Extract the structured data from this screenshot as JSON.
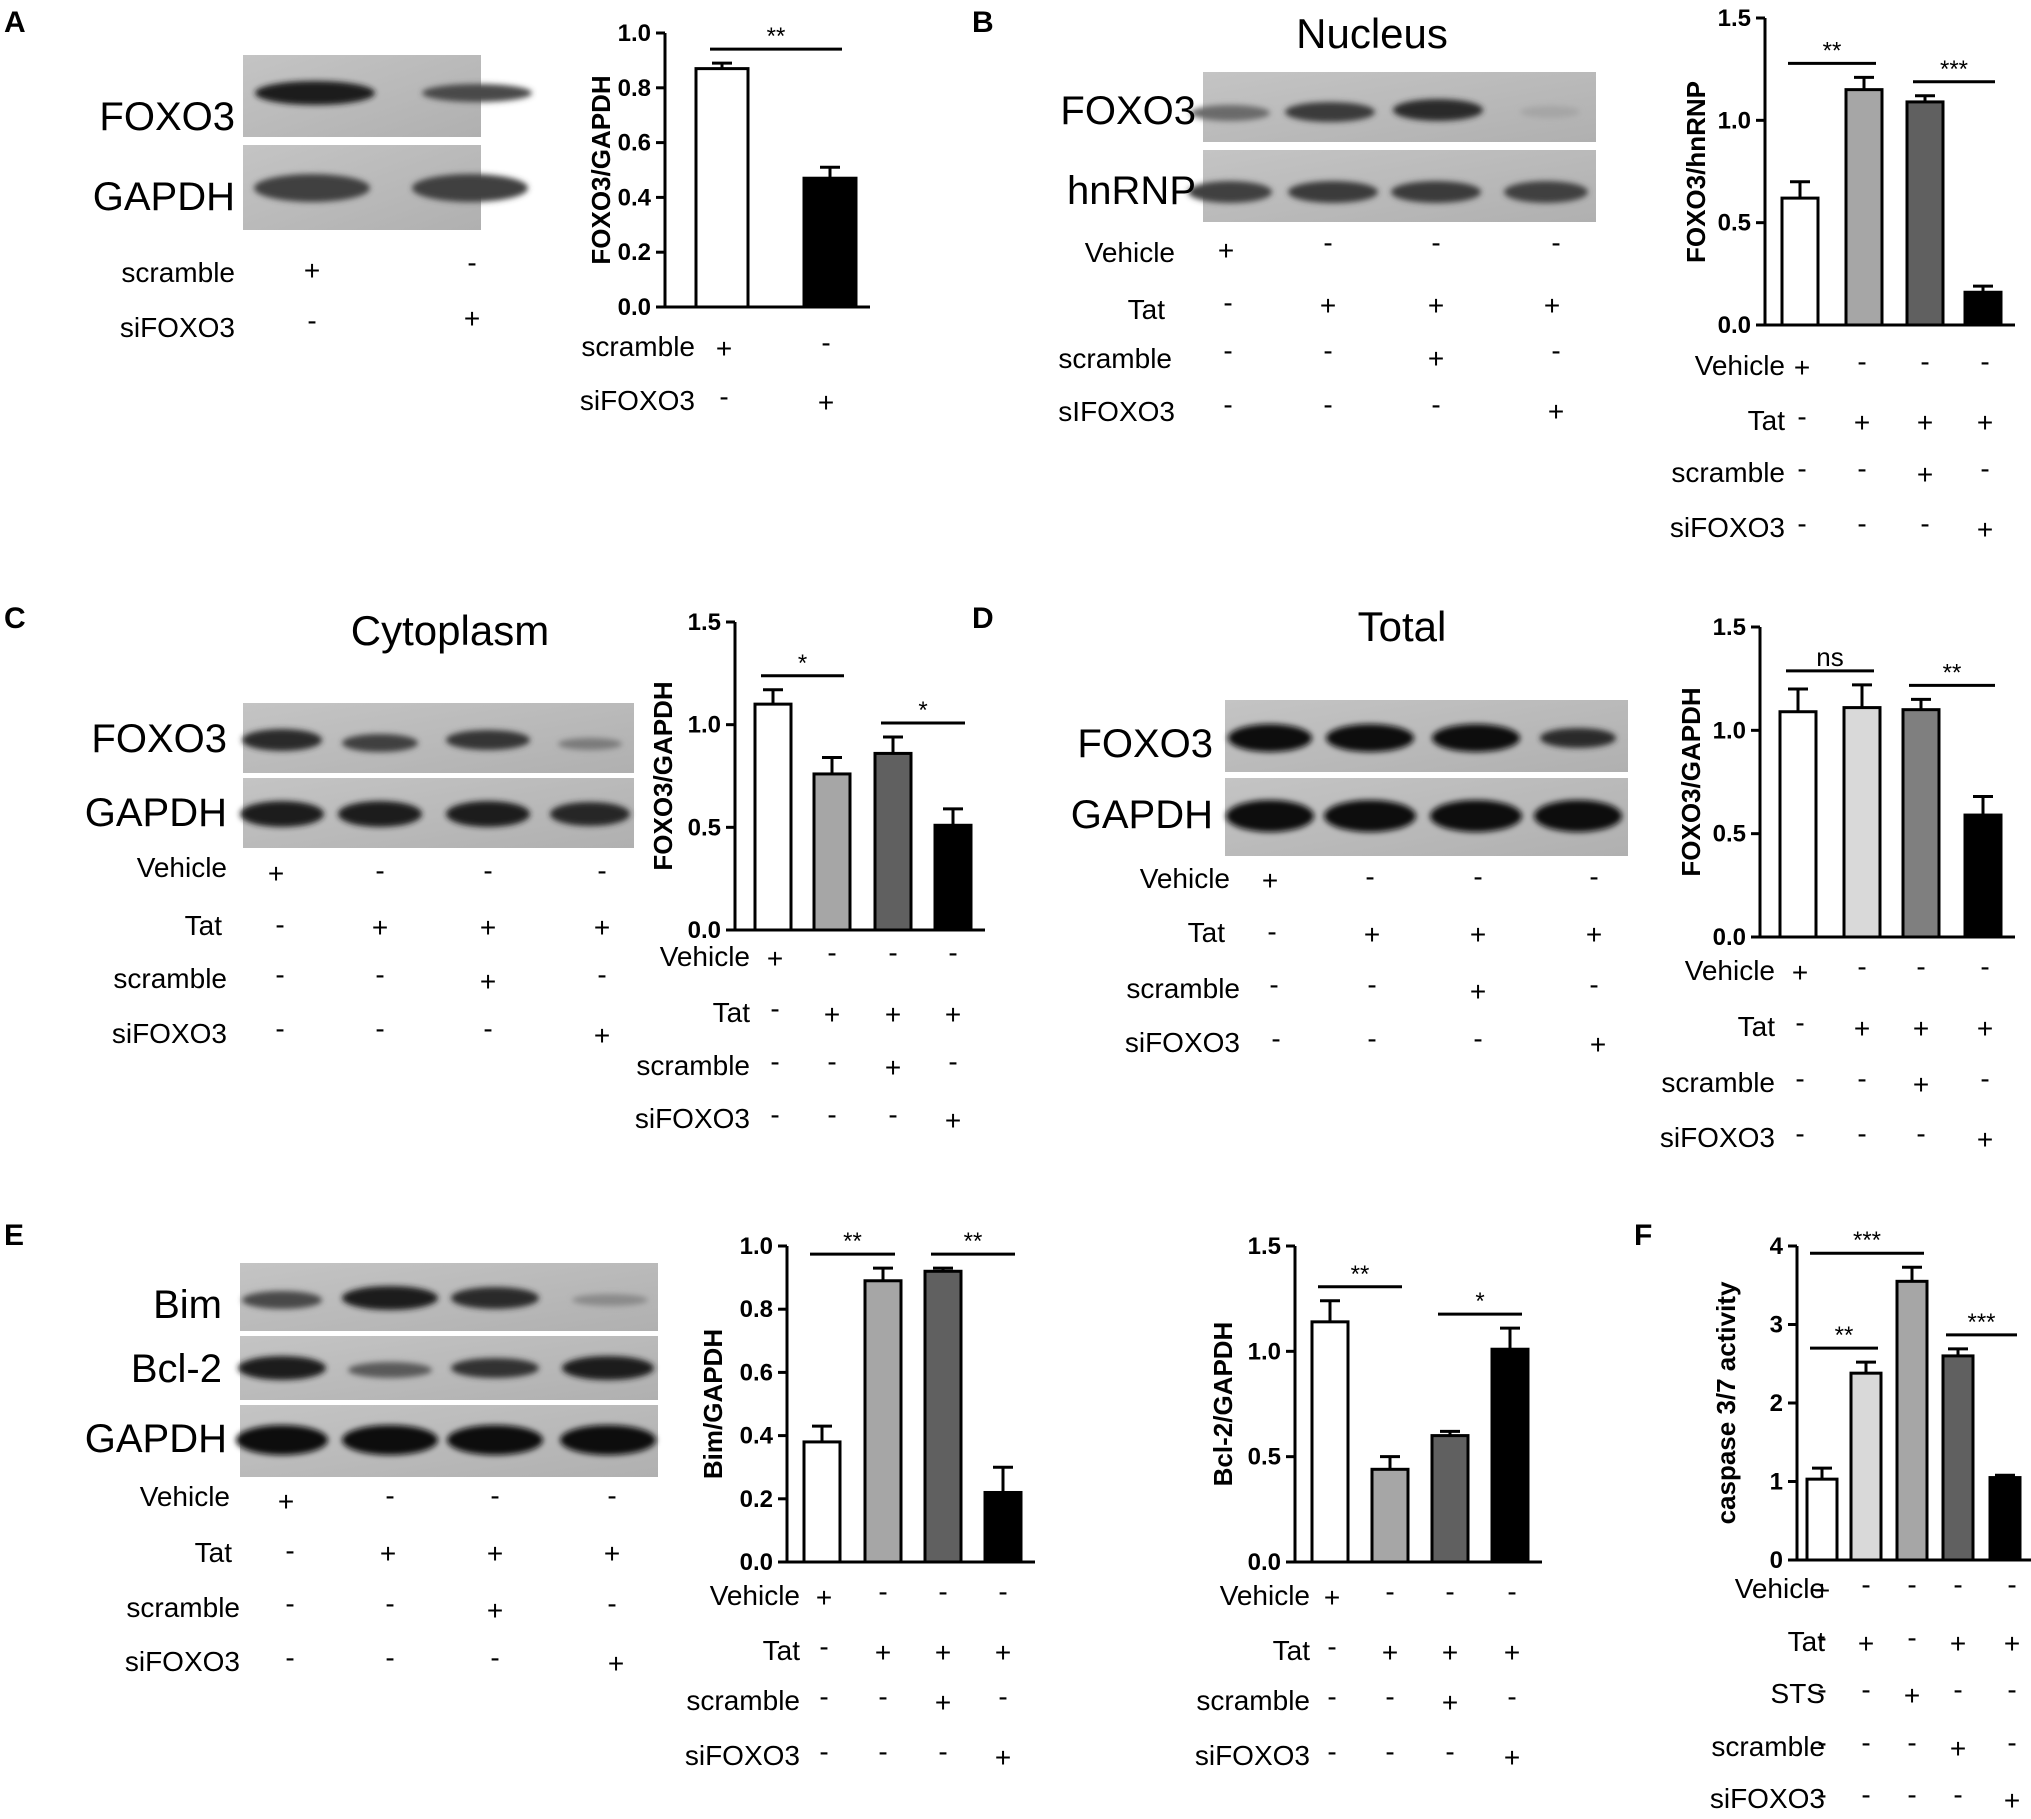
{
  "panel_letters": [
    "A",
    "B",
    "C",
    "D",
    "E",
    "F"
  ],
  "blots": {
    "A": {
      "title": "",
      "bands": [
        "FOXO3",
        "GAPDH"
      ],
      "rows": [
        {
          "label": "scramble",
          "signs": [
            "+",
            "-"
          ]
        },
        {
          "label": "siFOXO3",
          "signs": [
            "-",
            "+"
          ]
        }
      ]
    },
    "B": {
      "title": "Nucleus",
      "bands": [
        "FOXO3",
        "hnRNP"
      ],
      "rows": [
        {
          "label": "Vehicle",
          "signs": [
            "+",
            "-",
            "-",
            "-"
          ]
        },
        {
          "label": "Tat",
          "signs": [
            "-",
            "+",
            "+",
            "+"
          ]
        },
        {
          "label": "scramble",
          "signs": [
            "-",
            "-",
            "+",
            "-"
          ]
        },
        {
          "label": "sIFOXO3",
          "signs": [
            "-",
            "-",
            "-",
            "+"
          ]
        }
      ]
    },
    "C": {
      "title": "Cytoplasm",
      "bands": [
        "FOXO3",
        "GAPDH"
      ],
      "rows": [
        {
          "label": "Vehicle",
          "signs": [
            "+",
            "-",
            "-",
            "-"
          ]
        },
        {
          "label": "Tat",
          "signs": [
            "-",
            "+",
            "+",
            "+"
          ]
        },
        {
          "label": "scramble",
          "signs": [
            "-",
            "-",
            "+",
            "-"
          ]
        },
        {
          "label": "siFOXO3",
          "signs": [
            "-",
            "-",
            "-",
            "+"
          ]
        }
      ]
    },
    "D": {
      "title": "Total",
      "bands": [
        "FOXO3",
        "GAPDH"
      ],
      "rows": [
        {
          "label": "Vehicle",
          "signs": [
            "+",
            "-",
            "-",
            "-"
          ]
        },
        {
          "label": "Tat",
          "signs": [
            "-",
            "+",
            "+",
            "+"
          ]
        },
        {
          "label": "scramble",
          "signs": [
            "-",
            "-",
            "+",
            "-"
          ]
        },
        {
          "label": "siFOXO3",
          "signs": [
            "-",
            "-",
            "-",
            "+"
          ]
        }
      ]
    },
    "E": {
      "title": "",
      "bands": [
        "Bim",
        "Bcl-2",
        "GAPDH"
      ],
      "rows": [
        {
          "label": "Vehicle",
          "signs": [
            "+",
            "-",
            "-",
            "-"
          ]
        },
        {
          "label": "Tat",
          "signs": [
            "-",
            "+",
            "+",
            "+"
          ]
        },
        {
          "label": "scramble",
          "signs": [
            "-",
            "-",
            "+",
            "-"
          ]
        },
        {
          "label": "siFOXO3",
          "signs": [
            "-",
            "-",
            "-",
            "+"
          ]
        }
      ]
    }
  },
  "chart_data": [
    {
      "id": "A",
      "type": "bar",
      "ylabel": "FOXO3/GAPDH",
      "ylim": [
        0,
        1.0
      ],
      "yticks": [
        "0.0",
        "0.2",
        "0.4",
        "0.6",
        "0.8",
        "1.0"
      ],
      "values": [
        0.87,
        0.47
      ],
      "errors": [
        0.02,
        0.04
      ],
      "fills": [
        "#ffffff",
        "#000000"
      ],
      "significance": [
        {
          "from": 0,
          "to": 1,
          "label": "**"
        }
      ],
      "conditions": [
        {
          "label": "scramble",
          "signs": [
            "+",
            "-"
          ]
        },
        {
          "label": "siFOXO3",
          "signs": [
            "-",
            "+"
          ]
        }
      ]
    },
    {
      "id": "B",
      "type": "bar",
      "ylabel": "FOXO3/hnRNP",
      "ylim": [
        0,
        1.5
      ],
      "yticks": [
        "0.0",
        "0.5",
        "1.0",
        "1.5"
      ],
      "values": [
        0.62,
        1.15,
        1.09,
        0.16
      ],
      "errors": [
        0.08,
        0.06,
        0.03,
        0.03
      ],
      "fills": [
        "#ffffff",
        "#a6a6a6",
        "#606060",
        "#000000"
      ],
      "significance": [
        {
          "from": 0,
          "to": 1,
          "label": "**"
        },
        {
          "from": 2,
          "to": 3,
          "label": "***"
        }
      ],
      "conditions": [
        {
          "label": "Vehicle",
          "signs": [
            "+",
            "-",
            "-",
            "-"
          ]
        },
        {
          "label": "Tat",
          "signs": [
            "-",
            "+",
            "+",
            "+"
          ]
        },
        {
          "label": "scramble",
          "signs": [
            "-",
            "-",
            "+",
            "-"
          ]
        },
        {
          "label": "siFOXO3",
          "signs": [
            "-",
            "-",
            "-",
            "+"
          ]
        }
      ]
    },
    {
      "id": "C",
      "type": "bar",
      "ylabel": "FOXO3/GAPDH",
      "ylim": [
        0,
        1.5
      ],
      "yticks": [
        "0.0",
        "0.5",
        "1.0",
        "1.5"
      ],
      "values": [
        1.1,
        0.76,
        0.86,
        0.51
      ],
      "errors": [
        0.07,
        0.08,
        0.08,
        0.08
      ],
      "fills": [
        "#ffffff",
        "#a6a6a6",
        "#606060",
        "#000000"
      ],
      "significance": [
        {
          "from": 0,
          "to": 1,
          "label": "*"
        },
        {
          "from": 2,
          "to": 3,
          "label": "*"
        }
      ],
      "conditions": [
        {
          "label": "Vehicle",
          "signs": [
            "+",
            "-",
            "-",
            "-"
          ]
        },
        {
          "label": "Tat",
          "signs": [
            "-",
            "+",
            "+",
            "+"
          ]
        },
        {
          "label": "scramble",
          "signs": [
            "-",
            "-",
            "+",
            "-"
          ]
        },
        {
          "label": "siFOXO3",
          "signs": [
            "-",
            "-",
            "-",
            "+"
          ]
        }
      ]
    },
    {
      "id": "D",
      "type": "bar",
      "ylabel": "FOXO3/GAPDH",
      "ylim": [
        0,
        1.5
      ],
      "yticks": [
        "0.0",
        "0.5",
        "1.0",
        "1.5"
      ],
      "values": [
        1.09,
        1.11,
        1.1,
        0.59
      ],
      "errors": [
        0.11,
        0.11,
        0.05,
        0.09
      ],
      "fills": [
        "#ffffff",
        "#d9d9d9",
        "#7f7f7f",
        "#000000"
      ],
      "significance": [
        {
          "from": 0,
          "to": 1,
          "label": "ns"
        },
        {
          "from": 2,
          "to": 3,
          "label": "**"
        }
      ],
      "conditions": [
        {
          "label": "Vehicle",
          "signs": [
            "+",
            "-",
            "-",
            "-"
          ]
        },
        {
          "label": "Tat",
          "signs": [
            "-",
            "+",
            "+",
            "+"
          ]
        },
        {
          "label": "scramble",
          "signs": [
            "-",
            "-",
            "+",
            "-"
          ]
        },
        {
          "label": "siFOXO3",
          "signs": [
            "-",
            "-",
            "-",
            "+"
          ]
        }
      ]
    },
    {
      "id": "E1",
      "type": "bar",
      "ylabel": "Bim/GAPDH",
      "ylim": [
        0,
        1.0
      ],
      "yticks": [
        "0.0",
        "0.2",
        "0.4",
        "0.6",
        "0.8",
        "1.0"
      ],
      "values": [
        0.38,
        0.89,
        0.92,
        0.22
      ],
      "errors": [
        0.05,
        0.04,
        0.01,
        0.08
      ],
      "fills": [
        "#ffffff",
        "#a6a6a6",
        "#606060",
        "#000000"
      ],
      "significance": [
        {
          "from": 0,
          "to": 1,
          "label": "**"
        },
        {
          "from": 2,
          "to": 3,
          "label": "**"
        }
      ],
      "conditions": [
        {
          "label": "Vehicle",
          "signs": [
            "+",
            "-",
            "-",
            "-"
          ]
        },
        {
          "label": "Tat",
          "signs": [
            "-",
            "+",
            "+",
            "+"
          ]
        },
        {
          "label": "scramble",
          "signs": [
            "-",
            "-",
            "+",
            "-"
          ]
        },
        {
          "label": "siFOXO3",
          "signs": [
            "-",
            "-",
            "-",
            "+"
          ]
        }
      ]
    },
    {
      "id": "E2",
      "type": "bar",
      "ylabel": "Bcl-2/GAPDH",
      "ylim": [
        0,
        1.5
      ],
      "yticks": [
        "0.0",
        "0.5",
        "1.0",
        "1.5"
      ],
      "values": [
        1.14,
        0.44,
        0.6,
        1.01
      ],
      "errors": [
        0.1,
        0.06,
        0.02,
        0.1
      ],
      "fills": [
        "#ffffff",
        "#a6a6a6",
        "#606060",
        "#000000"
      ],
      "significance": [
        {
          "from": 0,
          "to": 1,
          "label": "**"
        },
        {
          "from": 2,
          "to": 3,
          "label": "*"
        }
      ],
      "conditions": [
        {
          "label": "Vehicle",
          "signs": [
            "+",
            "-",
            "-",
            "-"
          ]
        },
        {
          "label": "Tat",
          "signs": [
            "-",
            "+",
            "+",
            "+"
          ]
        },
        {
          "label": "scramble",
          "signs": [
            "-",
            "-",
            "+",
            "-"
          ]
        },
        {
          "label": "siFOXO3",
          "signs": [
            "-",
            "-",
            "-",
            "+"
          ]
        }
      ]
    },
    {
      "id": "F",
      "type": "bar",
      "ylabel": "caspase 3/7 activity",
      "ylim": [
        0,
        4
      ],
      "yticks": [
        "0",
        "1",
        "2",
        "3",
        "4"
      ],
      "values": [
        1.03,
        2.38,
        3.55,
        2.6,
        1.05
      ],
      "errors": [
        0.14,
        0.14,
        0.18,
        0.09,
        0.03
      ],
      "fills": [
        "#ffffff",
        "#d9d9d9",
        "#a6a6a6",
        "#606060",
        "#000000"
      ],
      "significance": [
        {
          "from": 0,
          "to": 1,
          "label": "**"
        },
        {
          "from": 0,
          "to": 2,
          "label": "***"
        },
        {
          "from": 3,
          "to": 4,
          "label": "***"
        }
      ],
      "conditions": [
        {
          "label": "Vehicle",
          "signs": [
            "+",
            "-",
            "-",
            "-",
            "-"
          ]
        },
        {
          "label": "Tat",
          "signs": [
            "-",
            "+",
            "-",
            "+",
            "+"
          ]
        },
        {
          "label": "STS",
          "signs": [
            "-",
            "-",
            "+",
            "-",
            "-"
          ]
        },
        {
          "label": "scramble",
          "signs": [
            "-",
            "-",
            "-",
            "+",
            "-"
          ]
        },
        {
          "label": "siFOXO3",
          "signs": [
            "-",
            "-",
            "-",
            "-",
            "+"
          ]
        }
      ]
    }
  ]
}
